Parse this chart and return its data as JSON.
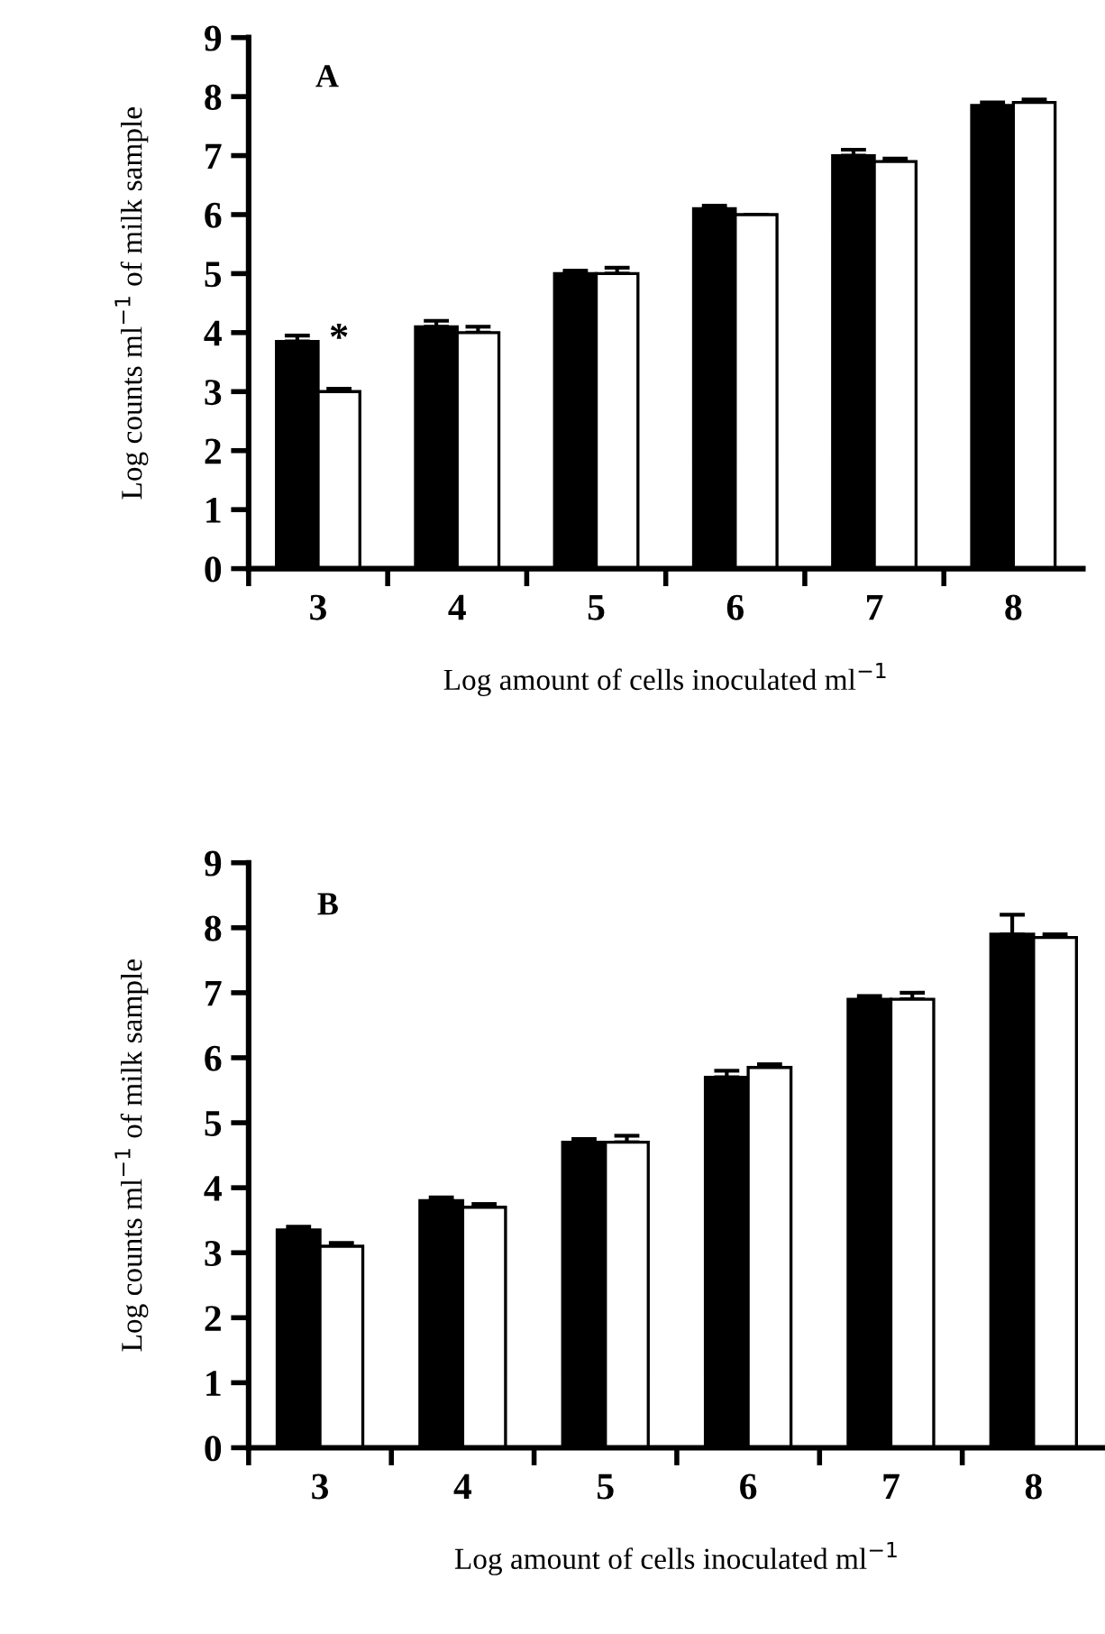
{
  "chart_data": [
    {
      "type": "bar",
      "title": "A",
      "xlabel": "Log amount of cells inoculated ml$^{−1}$",
      "ylabel": "Log counts ml$^{−1}$ of milk sample",
      "categories": [
        "3",
        "4",
        "5",
        "6",
        "7",
        "8"
      ],
      "ylim": [
        0,
        9
      ],
      "yticks": [
        0,
        1,
        2,
        3,
        4,
        5,
        6,
        7,
        8,
        9
      ],
      "grid": false,
      "legend": false,
      "series": [
        {
          "color": "#000000",
          "values": [
            3.85,
            4.1,
            5.0,
            6.1,
            7.0,
            7.85
          ],
          "errors": [
            [
              3.85,
              3.95
            ],
            [
              4.1,
              4.2
            ],
            [
              5.0,
              5.05
            ],
            [
              6.1,
              6.15
            ],
            [
              7.0,
              7.1
            ],
            [
              7.85,
              7.9
            ]
          ]
        },
        {
          "color": "#ffffff",
          "values": [
            3.0,
            4.0,
            5.0,
            6.0,
            6.9,
            7.9
          ],
          "errors": [
            [
              3.0,
              3.05
            ],
            [
              4.0,
              4.1
            ],
            [
              5.0,
              5.1
            ],
            [
              6.0,
              6.0
            ],
            [
              6.9,
              6.95
            ],
            [
              7.9,
              7.95
            ]
          ]
        }
      ],
      "annotations": [
        {
          "text": "*",
          "x": "3",
          "y": 3.05
        }
      ]
    },
    {
      "type": "bar",
      "title": "B",
      "xlabel": "Log amount of cells inoculated ml$^{−1}$",
      "ylabel": "Log counts ml$^{−1}$ of milk sample",
      "categories": [
        "3",
        "4",
        "5",
        "6",
        "7",
        "8"
      ],
      "ylim": [
        0,
        9
      ],
      "yticks": [
        0,
        1,
        2,
        3,
        4,
        5,
        6,
        7,
        8,
        9
      ],
      "grid": false,
      "legend": false,
      "series": [
        {
          "color": "#000000",
          "values": [
            3.35,
            3.8,
            4.7,
            5.7,
            6.9,
            7.9
          ],
          "errors": [
            [
              3.35,
              3.4
            ],
            [
              3.8,
              3.85
            ],
            [
              4.7,
              4.75
            ],
            [
              5.7,
              5.8
            ],
            [
              6.9,
              6.95
            ],
            [
              7.9,
              8.2
            ]
          ]
        },
        {
          "color": "#ffffff",
          "values": [
            3.1,
            3.7,
            4.7,
            5.85,
            6.9,
            7.85
          ],
          "errors": [
            [
              3.1,
              3.15
            ],
            [
              3.7,
              3.75
            ],
            [
              4.7,
              4.8
            ],
            [
              5.85,
              5.9
            ],
            [
              6.9,
              7.0
            ],
            [
              7.85,
              7.9
            ]
          ]
        }
      ]
    }
  ]
}
